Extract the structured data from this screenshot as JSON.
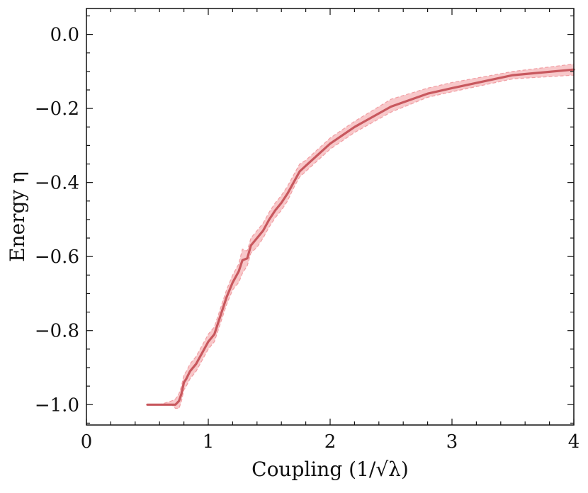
{
  "chart_data": {
    "type": "line",
    "xlabel": "Coupling (1/√λ)",
    "ylabel": "Energy η",
    "xlim": [
      0,
      4
    ],
    "ylim": [
      -1.055,
      0.07
    ],
    "xticks": [
      "0",
      "1",
      "2",
      "3",
      "4"
    ],
    "yticks": [
      "0.0",
      "−0.2",
      "−0.4",
      "−0.6",
      "−0.8",
      "−1.0"
    ],
    "grid": false,
    "series": [
      {
        "color": "#c8585e",
        "band_color": "#f6b5b8",
        "x": [
          0.5,
          0.6,
          0.7,
          0.73,
          0.76,
          0.78,
          0.8,
          0.82,
          0.85,
          0.9,
          0.95,
          1.0,
          1.05,
          1.1,
          1.15,
          1.2,
          1.25,
          1.28,
          1.32,
          1.35,
          1.4,
          1.45,
          1.5,
          1.55,
          1.6,
          1.65,
          1.7,
          1.75,
          1.8,
          2.0,
          2.2,
          2.5,
          2.8,
          3.0,
          3.5,
          4.0
        ],
        "y": [
          -1.0,
          -1.0,
          -1.0,
          -1.0,
          -0.99,
          -0.97,
          -0.94,
          -0.93,
          -0.91,
          -0.89,
          -0.86,
          -0.83,
          -0.81,
          -0.76,
          -0.71,
          -0.67,
          -0.64,
          -0.61,
          -0.605,
          -0.57,
          -0.55,
          -0.53,
          -0.5,
          -0.475,
          -0.455,
          -0.43,
          -0.4,
          -0.37,
          -0.355,
          -0.295,
          -0.25,
          -0.195,
          -0.16,
          -0.145,
          -0.11,
          -0.095
        ],
        "y_lower": [
          -1.0,
          -1.0,
          -1.0,
          -1.01,
          -1.01,
          -0.99,
          -0.96,
          -0.95,
          -0.93,
          -0.91,
          -0.88,
          -0.85,
          -0.83,
          -0.78,
          -0.73,
          -0.69,
          -0.67,
          -0.645,
          -0.625,
          -0.59,
          -0.575,
          -0.55,
          -0.52,
          -0.495,
          -0.475,
          -0.45,
          -0.415,
          -0.385,
          -0.37,
          -0.31,
          -0.265,
          -0.21,
          -0.17,
          -0.155,
          -0.12,
          -0.11
        ],
        "y_upper": [
          -1.0,
          -1.0,
          -0.99,
          -0.985,
          -0.97,
          -0.95,
          -0.92,
          -0.91,
          -0.89,
          -0.87,
          -0.84,
          -0.81,
          -0.79,
          -0.74,
          -0.69,
          -0.65,
          -0.62,
          -0.58,
          -0.585,
          -0.55,
          -0.53,
          -0.51,
          -0.48,
          -0.455,
          -0.435,
          -0.41,
          -0.38,
          -0.35,
          -0.34,
          -0.28,
          -0.235,
          -0.175,
          -0.145,
          -0.13,
          -0.1,
          -0.08
        ]
      }
    ]
  }
}
